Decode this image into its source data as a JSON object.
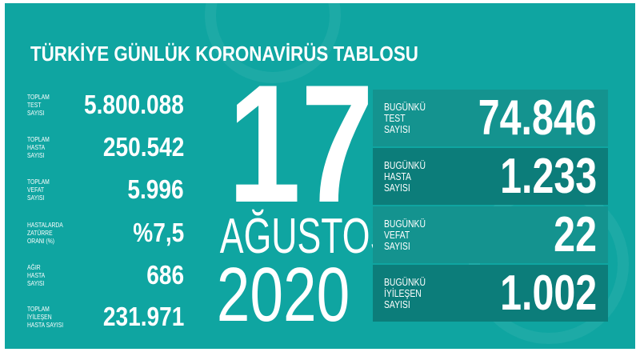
{
  "title": "TÜRKİYE GÜNLÜK KORONAVİRÜS TABLOSU",
  "totals": [
    {
      "label": "TOPLAM\nTEST\nSAYISI",
      "value": "5.800.088"
    },
    {
      "label": "TOPLAM\nHASTA\nSAYISI",
      "value": "250.542"
    },
    {
      "label": "TOPLAM\nVEFAT\nSAYISI",
      "value": "5.996"
    },
    {
      "label": "HASTALARDA\nZATÜRRE\nORANI (%)",
      "value": "%7,5"
    },
    {
      "label": "AĞIR\nHASTA\nSAYISI",
      "value": "686"
    },
    {
      "label": "TOPLAM\nİYİLEŞEN\nHASTA SAYISI",
      "value": "231.971"
    }
  ],
  "date": {
    "day": "17",
    "month": "AĞUSTOS",
    "year": "2020"
  },
  "today": [
    {
      "label": "BUGÜNKÜ\nTEST\nSAYISI",
      "value": "74.846"
    },
    {
      "label": "BUGÜNKÜ\nHASTA\nSAYISI",
      "value": "1.233"
    },
    {
      "label": "BUGÜNKÜ\nVEFAT\nSAYISI",
      "value": "22"
    },
    {
      "label": "BUGÜNKÜ\nİYİLEŞEN\nSAYISI",
      "value": "1.002"
    }
  ],
  "colors": {
    "background": "#0fa5a1",
    "box_light": "#14938f",
    "box_dark": "#0c7d7a"
  }
}
